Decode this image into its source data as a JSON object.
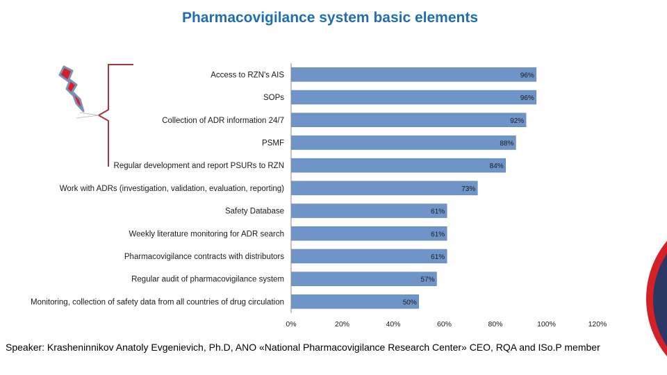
{
  "title": "Pharmacovigilance system basic elements",
  "footer": "Speaker: Krasheninnikov Anatoly Evgenievich, Ph.D, ANO «National Pharmacovigilance Research Center» CEO, RQA and ISo.P member",
  "colors": {
    "bar": "#6f95c8",
    "bar_edge": "#5a7fb3",
    "title": "#1f6fb0",
    "accent_red": "#d42027",
    "accent_navy": "#2a3663",
    "bracket": "#a33a3a"
  },
  "icons": {
    "warning": "lightning-bolt-icon"
  },
  "chart_data": {
    "type": "bar",
    "orientation": "horizontal",
    "categories": [
      "Access to RZN's AIS",
      "SOPs",
      "Collection of ADR information 24/7",
      "PSMF",
      "Regular development and report PSURs to RZN",
      "Work with ADRs (investigation, validation, evaluation, reporting)",
      "Safety Database",
      "Weekly literature monitoring for ADR search",
      "Pharmacovigilance contracts with distributors",
      "Regular audit of pharmacovigilance system",
      "Monitoring, collection of safety data from all countries of drug circulation"
    ],
    "values": [
      96,
      96,
      92,
      88,
      84,
      73,
      61,
      61,
      61,
      57,
      50
    ],
    "data_labels": [
      "96%",
      "96%",
      "92%",
      "88%",
      "84%",
      "73%",
      "61%",
      "61%",
      "61%",
      "57%",
      "50%"
    ],
    "xlim": [
      0,
      120
    ],
    "x_ticks": [
      0,
      20,
      40,
      60,
      80,
      100,
      120
    ],
    "x_tick_labels": [
      "0%",
      "20%",
      "40%",
      "60%",
      "80%",
      "100%",
      "120%"
    ],
    "grid": false,
    "legend": "none"
  }
}
